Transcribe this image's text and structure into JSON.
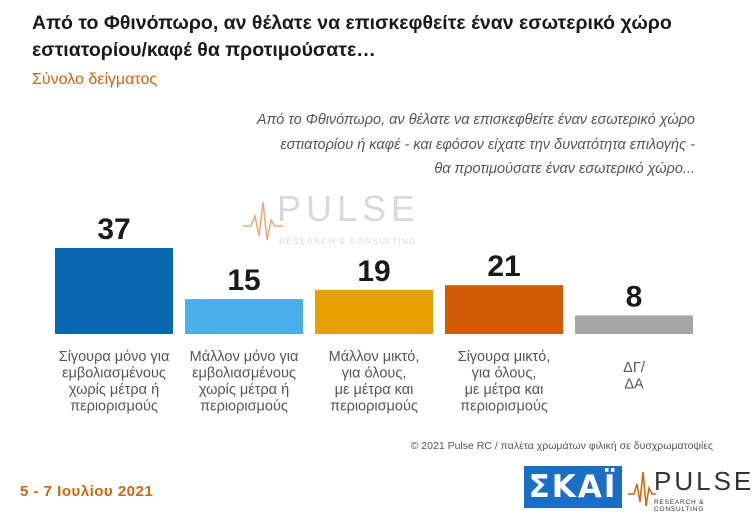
{
  "header": {
    "title": "Από το Φθινόπωρο, αν θέλατε να επισκεφθείτε έναν εσωτερικό χώρο εστιατορίου/καφέ θα προτιμούσατε…",
    "subtitle": "Σύνολο δείγματος"
  },
  "question_lines": [
    "Από το Φθινόπωρο, αν θέλατε να επισκεφθείτε έναν εσωτερικό χώρο",
    "εστιατορίου ή καφέ - και εφόσον είχατε την δυνατότητα επιλογής -",
    "θα προτιμούσατε έναν εσωτερικό χώρο..."
  ],
  "watermark": {
    "word": "PULSE",
    "sub": "RESEARCH & CONSULTING"
  },
  "chart_data": {
    "type": "bar",
    "categories": [
      [
        "Σίγουρα μόνο για",
        "εμβολιασμένους",
        "χωρίς μέτρα ή",
        "περιορισμούς"
      ],
      [
        "Μάλλον μόνο για",
        "εμβολιασμένους",
        "χωρίς μέτρα ή",
        "περιορισμούς"
      ],
      [
        "Μάλλον μικτό,",
        "για όλους,",
        "με μέτρα και",
        "περιορισμούς"
      ],
      [
        "Σίγουρα μικτό,",
        "για όλους,",
        "με μέτρα και",
        "περιορισμούς"
      ],
      [
        "ΔΓ/",
        "ΔΑ"
      ]
    ],
    "values": [
      37,
      15,
      19,
      21,
      8
    ],
    "colors": [
      "#0a68b0",
      "#4aaee8",
      "#e6a000",
      "#d05a06",
      "#a5a5a5"
    ],
    "data_labels": [
      "37",
      "15",
      "19",
      "21",
      "8"
    ],
    "ylim": [
      0,
      40
    ],
    "grid": false,
    "legend": "none"
  },
  "footer": {
    "copyright": "© 2021 Pulse RC   /   παλέτα χρωμάτων φιλική σε δυσχρωματοψίες",
    "date": "5 - 7  Ιουλίου  2021"
  },
  "logos": {
    "skai": "ΣΚΑΪ",
    "pulse_word": "PULSE",
    "pulse_sub": "RESEARCH & CONSULTING"
  }
}
